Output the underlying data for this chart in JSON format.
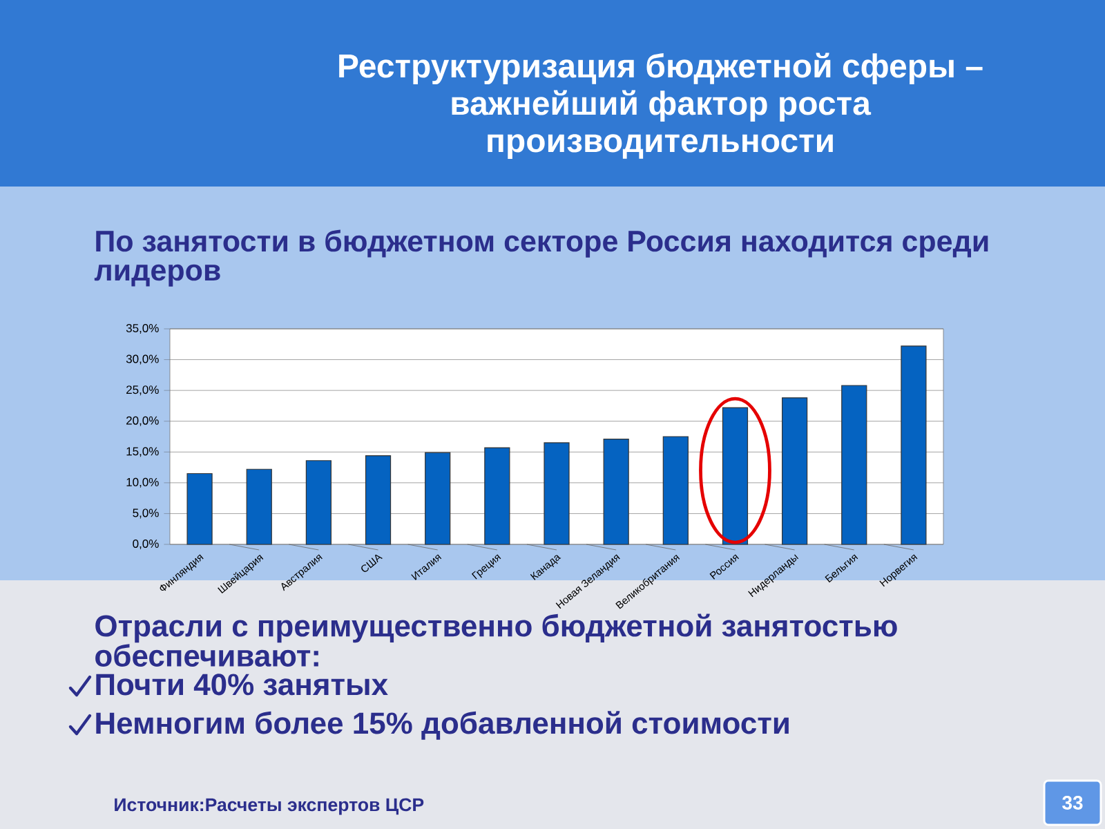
{
  "chart_data": {
    "type": "bar",
    "title": "Реструктуризация бюджетной сферы – важнейший фактор роста производительности",
    "subtitle": "По занятости в бюджетном секторе Россия находится среди лидеров",
    "categories": [
      "Финляндия",
      "Швейцария",
      "Австралия",
      "США",
      "Италия",
      "Греция",
      "Канада",
      "Новая Зеландия",
      "Великобритания",
      "Россия",
      "Нидерланды",
      "Бельгия",
      "Норвегия"
    ],
    "values": [
      11.5,
      12.2,
      13.6,
      14.4,
      14.9,
      15.7,
      16.5,
      17.1,
      17.5,
      22.2,
      23.8,
      25.8,
      32.2
    ],
    "color": "#0563c1",
    "ylim": [
      0,
      35
    ],
    "yticks": [
      {
        "value": 0,
        "label": "0,0%"
      },
      {
        "value": 5,
        "label": "5,0%"
      },
      {
        "value": 10,
        "label": "10,0%"
      },
      {
        "value": 15,
        "label": "15,0%"
      },
      {
        "value": 20,
        "label": "20,0%"
      },
      {
        "value": 25,
        "label": "25,0%"
      },
      {
        "value": 30,
        "label": "30,0%"
      },
      {
        "value": 35,
        "label": "35,0%"
      }
    ],
    "grid": "y",
    "annotations": [
      "Отрасли с преимущественно бюджетной занятостью обеспечивают:",
      "Почти 40% занятых",
      "Немногим более 15% добавленной стоимости",
      "Источник:Расчеты экспертов ЦСР",
      "33"
    ]
  }
}
